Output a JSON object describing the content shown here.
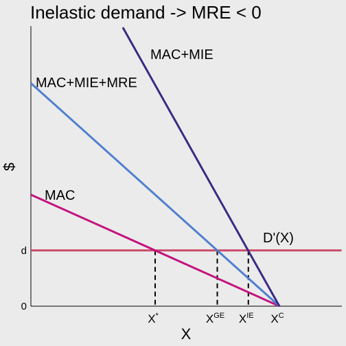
{
  "chart_data": {
    "type": "line",
    "title": "Inelastic demand -> MRE < 0",
    "xlabel": "X",
    "ylabel": "$",
    "xlim": [
      0,
      10
    ],
    "ylim": [
      0,
      10
    ],
    "grid": false,
    "colors": {
      "background": "#ebebeb",
      "mac": "#c4127e",
      "mac_mie_mre": "#4f7fcf",
      "mac_mie": "#3a2a82",
      "demand": "#c94a6a"
    },
    "y_ticks": [
      {
        "value": 0,
        "label": "0"
      },
      {
        "value": 2.0,
        "label": "d"
      }
    ],
    "x_ticks": [
      {
        "value": 5.0,
        "main": "X",
        "sup": "*"
      },
      {
        "value": 7.5,
        "main": "X",
        "sup": "GE"
      },
      {
        "value": 8.75,
        "main": "X",
        "sup": "IE"
      },
      {
        "value": 10.0,
        "main": "X",
        "sup": "C"
      }
    ],
    "series": [
      {
        "key": "mac",
        "name": "MAC",
        "points": [
          [
            0,
            4.0
          ],
          [
            10,
            0
          ]
        ]
      },
      {
        "key": "mac_mie_mre",
        "name": "MAC+MIE+MRE",
        "points": [
          [
            0,
            8.0
          ],
          [
            10,
            0
          ]
        ]
      },
      {
        "key": "mac_mie",
        "name": "MAC+MIE",
        "points": [
          [
            3.7,
            10.0
          ],
          [
            10,
            0
          ]
        ]
      },
      {
        "key": "demand",
        "name": "D'(X)",
        "points": [
          [
            0,
            2.0
          ],
          [
            12.5,
            2.0
          ]
        ]
      }
    ],
    "dashed_drops": [
      5.0,
      7.5,
      8.75
    ]
  }
}
